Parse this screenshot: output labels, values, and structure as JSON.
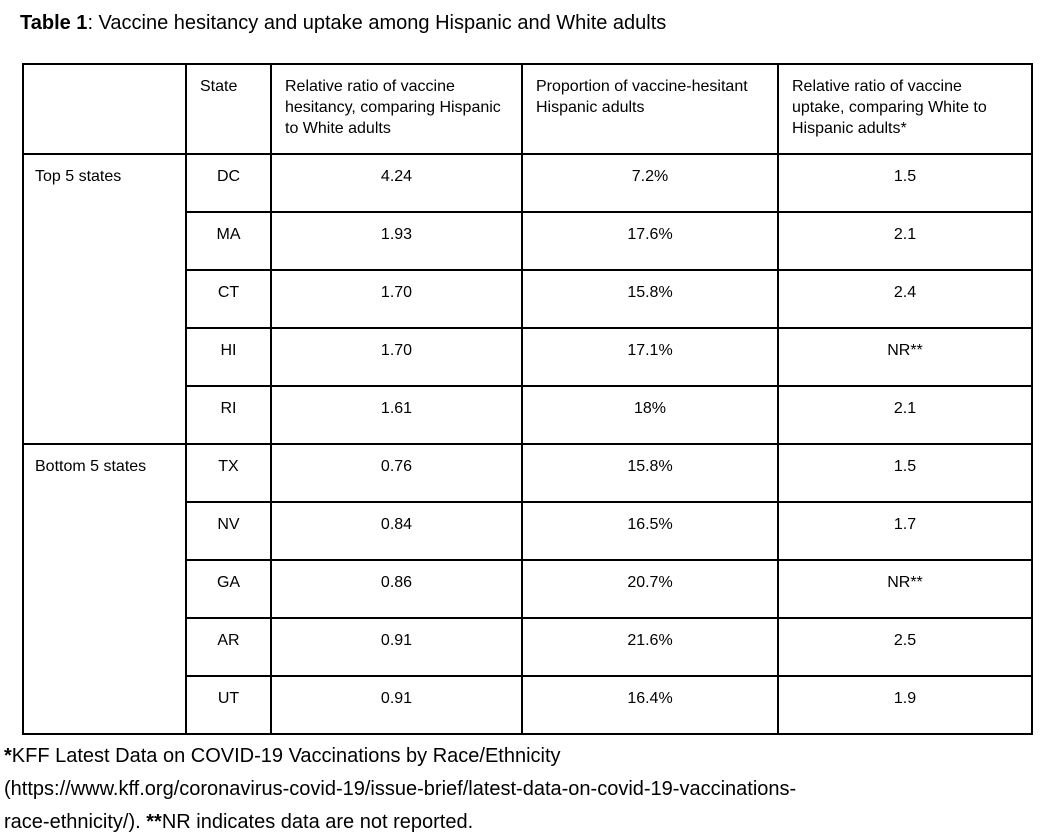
{
  "colors": {
    "background": "#ffffff",
    "text": "#000000",
    "table_border": "#000000"
  },
  "title": {
    "prefix": "Table 1",
    "rest": ": Vaccine hesitancy and uptake among Hispanic and White adults"
  },
  "table": {
    "headers": {
      "group": "",
      "state": "State",
      "hesitancy": "Relative ratio of vaccine hesitancy, comparing Hispanic to White adults",
      "proportion": "Proportion of vaccine-hesitant Hispanic adults",
      "uptake": "Relative ratio of vaccine uptake, comparing White to Hispanic adults*"
    },
    "groups": [
      {
        "label": "Top 5 states",
        "rows": [
          {
            "state": "DC",
            "hesitancy_ratio": "4.24",
            "hesitant_proportion": "7.2%",
            "uptake_ratio": "1.5"
          },
          {
            "state": "MA",
            "hesitancy_ratio": "1.93",
            "hesitant_proportion": "17.6%",
            "uptake_ratio": "2.1"
          },
          {
            "state": "CT",
            "hesitancy_ratio": "1.70",
            "hesitant_proportion": "15.8%",
            "uptake_ratio": "2.4"
          },
          {
            "state": "HI",
            "hesitancy_ratio": "1.70",
            "hesitant_proportion": "17.1%",
            "uptake_ratio": "NR**"
          },
          {
            "state": "RI",
            "hesitancy_ratio": "1.61",
            "hesitant_proportion": "18%",
            "uptake_ratio": "2.1"
          }
        ]
      },
      {
        "label": "Bottom 5 states",
        "rows": [
          {
            "state": "TX",
            "hesitancy_ratio": "0.76",
            "hesitant_proportion": "15.8%",
            "uptake_ratio": "1.5"
          },
          {
            "state": "NV",
            "hesitancy_ratio": "0.84",
            "hesitant_proportion": "16.5%",
            "uptake_ratio": "1.7"
          },
          {
            "state": "GA",
            "hesitancy_ratio": "0.86",
            "hesitant_proportion": "20.7%",
            "uptake_ratio": "NR**"
          },
          {
            "state": "AR",
            "hesitancy_ratio": "0.91",
            "hesitant_proportion": "21.6%",
            "uptake_ratio": "2.5"
          },
          {
            "state": "UT",
            "hesitancy_ratio": "0.91",
            "hesitant_proportion": "16.4%",
            "uptake_ratio": "1.9"
          }
        ]
      }
    ]
  },
  "footnote": {
    "line1_marker": "*",
    "line1_text": "KFF Latest Data on COVID-19 Vaccinations by Race/Ethnicity",
    "line2_text": "(https://www.kff.org/coronavirus-covid-19/issue-brief/latest-data-on-covid-19-vaccinations-",
    "line3_prefix": "race-ethnicity/). ",
    "line3_marker": "**",
    "line3_text": "NR indicates data are not reported."
  }
}
